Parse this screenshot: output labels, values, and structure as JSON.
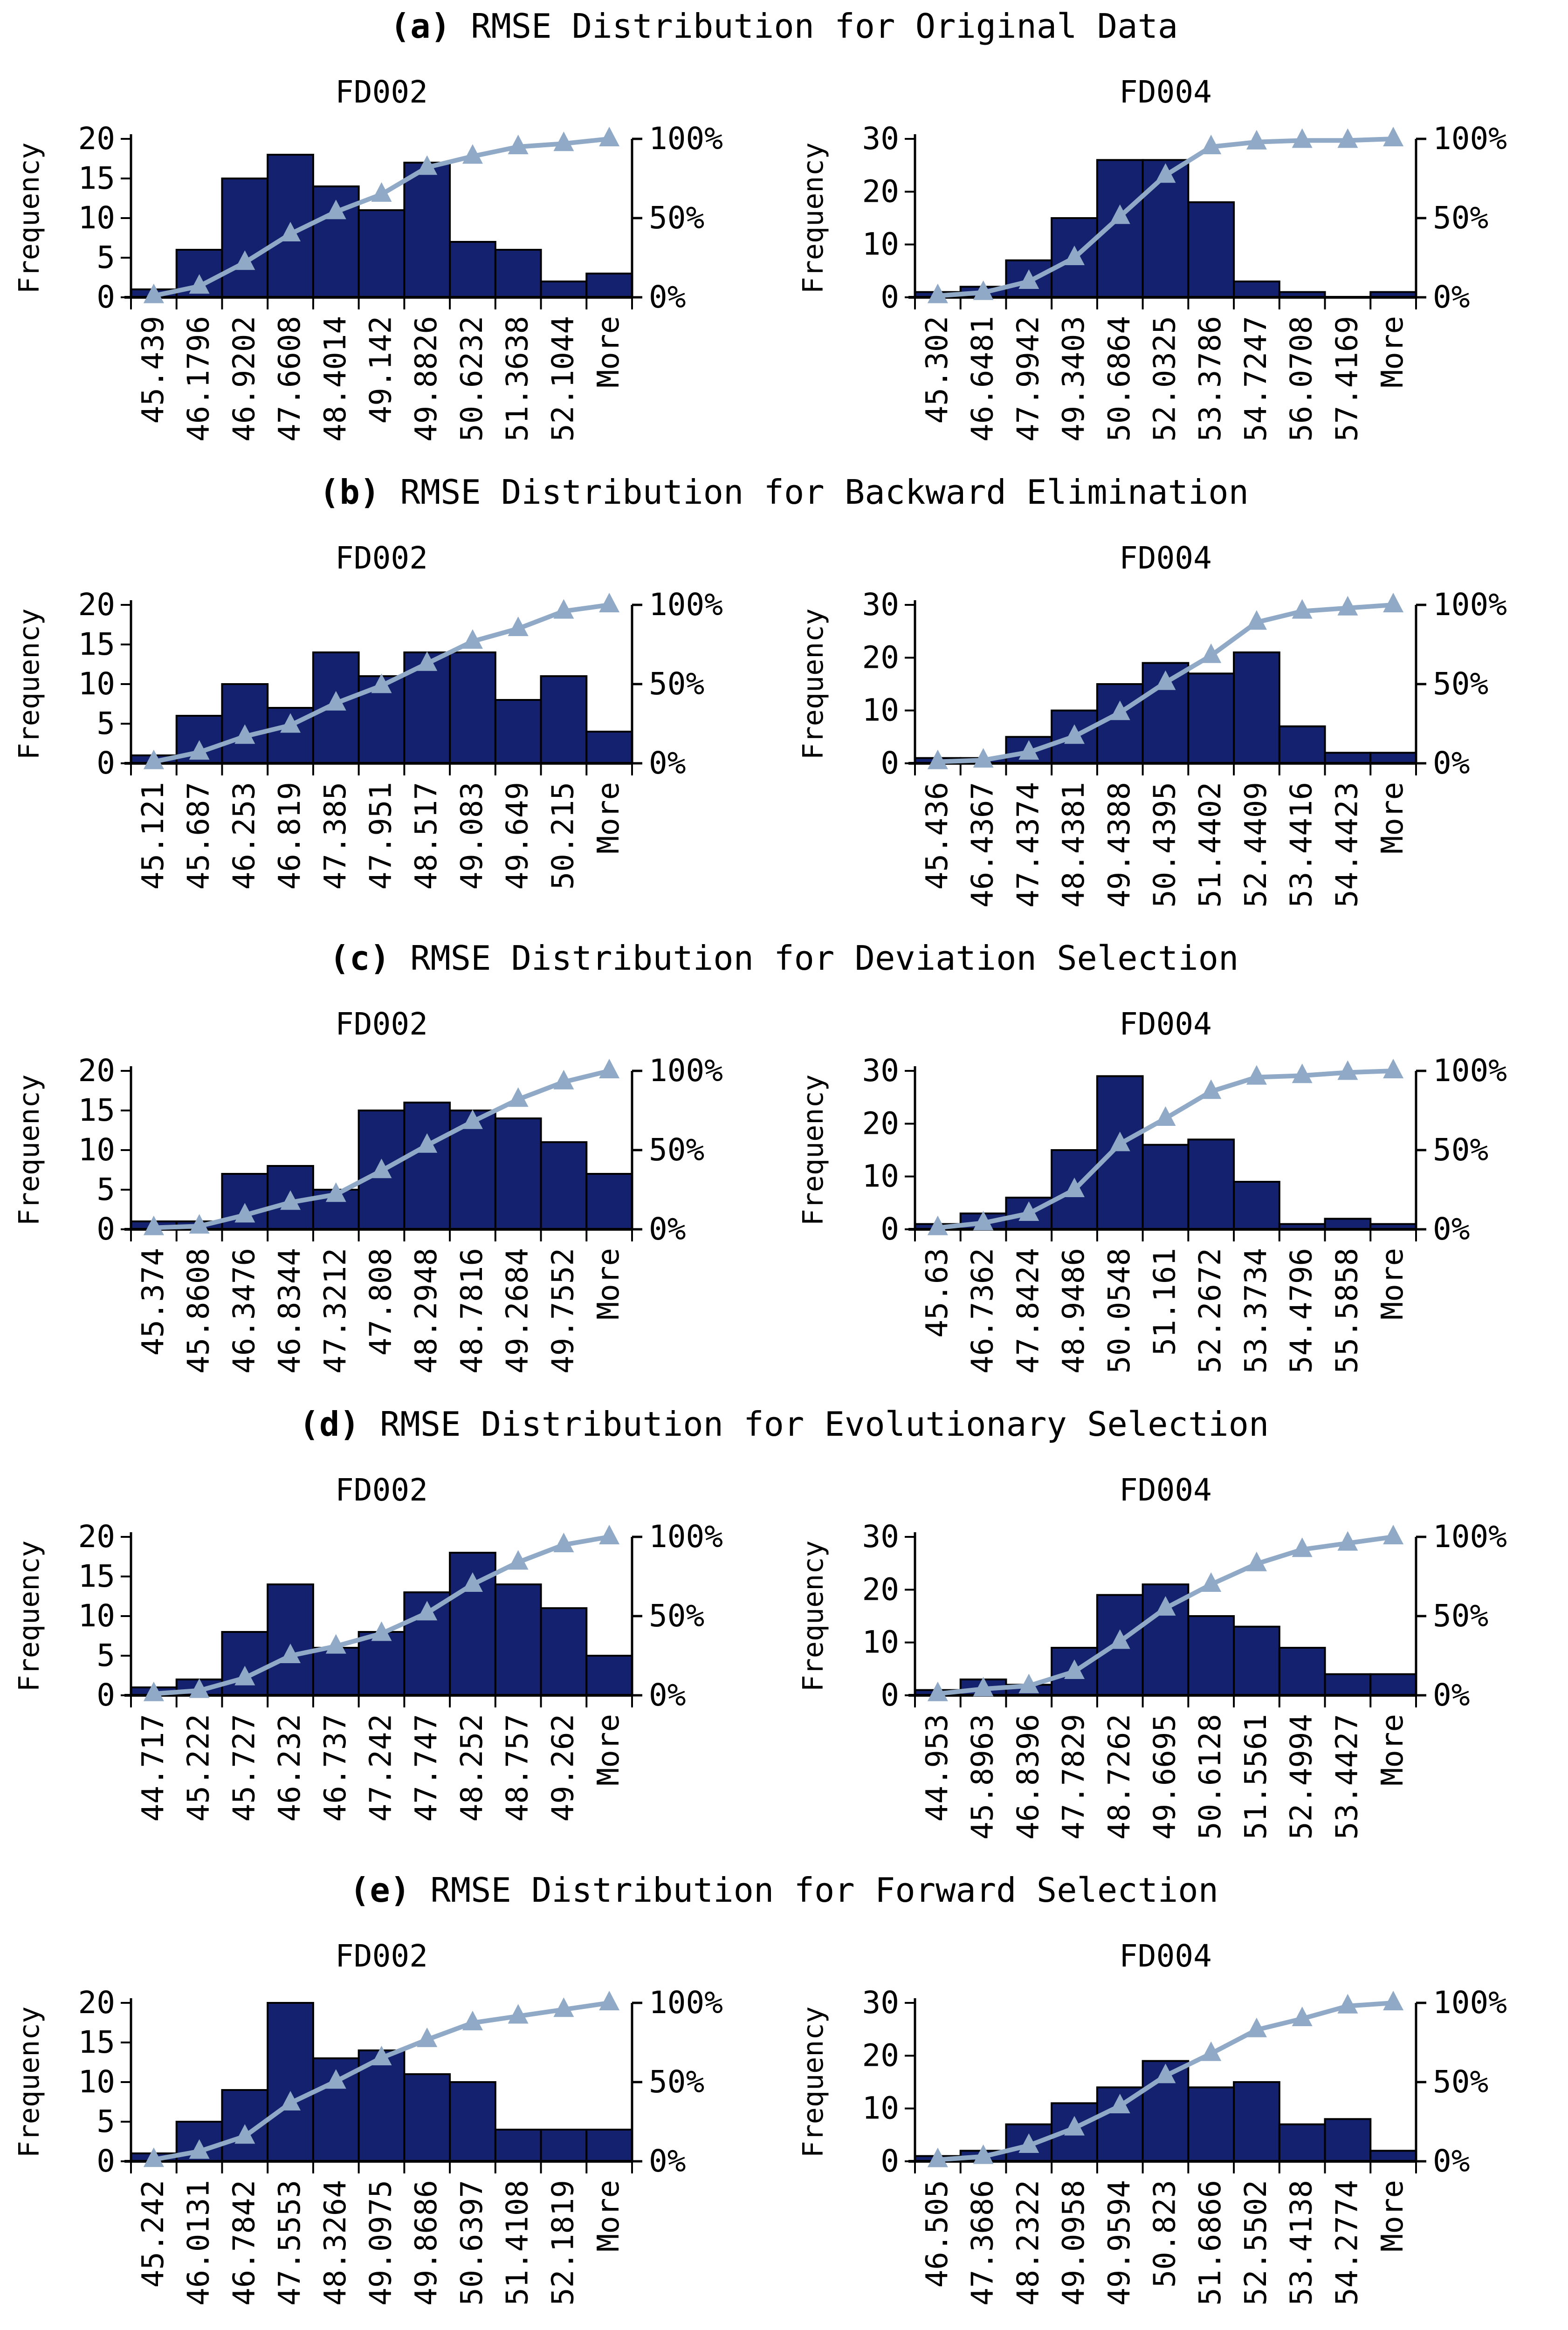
{
  "figure": {
    "rows": [
      {
        "caption_prefix": "(a)",
        "caption_text": " RMSE Distribution for Original Data"
      },
      {
        "caption_prefix": "(b)",
        "caption_text": " RMSE Distribution for Backward Elimination"
      },
      {
        "caption_prefix": "(c)",
        "caption_text": " RMSE Distribution for Deviation Selection"
      },
      {
        "caption_prefix": "(d)",
        "caption_text": " RMSE Distribution for Evolutionary Selection"
      },
      {
        "caption_prefix": "(e)",
        "caption_text": " RMSE Distribution for Forward Selection"
      }
    ]
  },
  "style": {
    "bar_fill": "#14216E",
    "bar_edge": "#000000",
    "line_color": "#8FA9C6",
    "axis_color": "#000000"
  },
  "chart_data": [
    {
      "type": "bar",
      "subtype": "pareto-histogram",
      "panel": "a",
      "title": "FD002",
      "ylabel": "Frequency",
      "ylim": [
        0,
        20
      ],
      "y_ticks": [
        0,
        5,
        10,
        15,
        20
      ],
      "right_axis_ticks": [
        "0%",
        "50%",
        "100%"
      ],
      "legend": "none",
      "grid": "off",
      "categories": [
        "45.439",
        "46.1796",
        "46.9202",
        "47.6608",
        "48.4014",
        "49.142",
        "49.8826",
        "50.6232",
        "51.3638",
        "52.1044",
        "More"
      ],
      "frequencies": [
        1,
        6,
        15,
        18,
        14,
        11,
        17,
        7,
        6,
        2,
        3
      ],
      "cumulative_percent": [
        1,
        7,
        22,
        40,
        54,
        65,
        82,
        89,
        95,
        97,
        100
      ]
    },
    {
      "type": "bar",
      "subtype": "pareto-histogram",
      "panel": "a",
      "title": "FD004",
      "ylabel": "Frequency",
      "ylim": [
        0,
        30
      ],
      "y_ticks": [
        0,
        10,
        20,
        30
      ],
      "right_axis_ticks": [
        "0%",
        "50%",
        "100%"
      ],
      "legend": "none",
      "grid": "off",
      "categories": [
        "45.302",
        "46.6481",
        "47.9942",
        "49.3403",
        "50.6864",
        "52.0325",
        "53.3786",
        "54.7247",
        "56.0708",
        "57.4169",
        "More"
      ],
      "frequencies": [
        1,
        2,
        7,
        15,
        26,
        26,
        18,
        3,
        1,
        0,
        1
      ],
      "cumulative_percent": [
        1,
        3,
        10,
        25,
        51,
        77,
        95,
        98,
        99,
        99,
        100
      ]
    },
    {
      "type": "bar",
      "subtype": "pareto-histogram",
      "panel": "b",
      "title": "FD002",
      "ylabel": "Frequency",
      "ylim": [
        0,
        20
      ],
      "y_ticks": [
        0,
        5,
        10,
        15,
        20
      ],
      "right_axis_ticks": [
        "0%",
        "50%",
        "100%"
      ],
      "legend": "none",
      "grid": "off",
      "categories": [
        "45.121",
        "45.687",
        "46.253",
        "46.819",
        "47.385",
        "47.951",
        "48.517",
        "49.083",
        "49.649",
        "50.215",
        "More"
      ],
      "frequencies": [
        1,
        6,
        10,
        7,
        14,
        11,
        14,
        14,
        8,
        11,
        4
      ],
      "cumulative_percent": [
        1,
        7,
        17,
        24,
        38,
        49,
        63,
        77,
        85,
        96,
        100
      ]
    },
    {
      "type": "bar",
      "subtype": "pareto-histogram",
      "panel": "b",
      "title": "FD004",
      "ylabel": "Frequency",
      "ylim": [
        0,
        30
      ],
      "y_ticks": [
        0,
        10,
        20,
        30
      ],
      "right_axis_ticks": [
        "0%",
        "50%",
        "100%"
      ],
      "legend": "none",
      "grid": "off",
      "categories": [
        "45.436",
        "46.4367",
        "47.4374",
        "48.4381",
        "49.4388",
        "50.4395",
        "51.4402",
        "52.4409",
        "53.4416",
        "54.4423",
        "More"
      ],
      "frequencies": [
        1,
        1,
        5,
        10,
        15,
        19,
        17,
        21,
        7,
        2,
        2
      ],
      "cumulative_percent": [
        1,
        2,
        7,
        17,
        32,
        51,
        68,
        89,
        96,
        98,
        100
      ]
    },
    {
      "type": "bar",
      "subtype": "pareto-histogram",
      "panel": "c",
      "title": "FD002",
      "ylabel": "Frequency",
      "ylim": [
        0,
        20
      ],
      "y_ticks": [
        0,
        5,
        10,
        15,
        20
      ],
      "right_axis_ticks": [
        "0%",
        "50%",
        "100%"
      ],
      "legend": "none",
      "grid": "off",
      "categories": [
        "45.374",
        "45.8608",
        "46.3476",
        "46.8344",
        "47.3212",
        "47.808",
        "48.2948",
        "48.7816",
        "49.2684",
        "49.7552",
        "More"
      ],
      "frequencies": [
        1,
        1,
        7,
        8,
        5,
        15,
        16,
        15,
        14,
        11,
        7
      ],
      "cumulative_percent": [
        1,
        2,
        9,
        17,
        22,
        37,
        53,
        68,
        82,
        93,
        100
      ]
    },
    {
      "type": "bar",
      "subtype": "pareto-histogram",
      "panel": "c",
      "title": "FD004",
      "ylabel": "Frequency",
      "ylim": [
        0,
        30
      ],
      "y_ticks": [
        0,
        10,
        20,
        30
      ],
      "right_axis_ticks": [
        "0%",
        "50%",
        "100%"
      ],
      "legend": "none",
      "grid": "off",
      "categories": [
        "45.63",
        "46.7362",
        "47.8424",
        "48.9486",
        "50.0548",
        "51.161",
        "52.2672",
        "53.3734",
        "54.4796",
        "55.5858",
        "More"
      ],
      "frequencies": [
        1,
        3,
        6,
        15,
        29,
        16,
        17,
        9,
        1,
        2,
        1
      ],
      "cumulative_percent": [
        1,
        4,
        10,
        25,
        54,
        70,
        87,
        96,
        97,
        99,
        100
      ]
    },
    {
      "type": "bar",
      "subtype": "pareto-histogram",
      "panel": "d",
      "title": "FD002",
      "ylabel": "Frequency",
      "ylim": [
        0,
        20
      ],
      "y_ticks": [
        0,
        5,
        10,
        15,
        20
      ],
      "right_axis_ticks": [
        "0%",
        "50%",
        "100%"
      ],
      "legend": "none",
      "grid": "off",
      "categories": [
        "44.717",
        "45.222",
        "45.727",
        "46.232",
        "46.737",
        "47.242",
        "47.747",
        "48.252",
        "48.757",
        "49.262",
        "More"
      ],
      "frequencies": [
        1,
        2,
        8,
        14,
        6,
        8,
        13,
        18,
        14,
        11,
        5
      ],
      "cumulative_percent": [
        1,
        3,
        11,
        25,
        31,
        39,
        52,
        70,
        84,
        95,
        100
      ]
    },
    {
      "type": "bar",
      "subtype": "pareto-histogram",
      "panel": "d",
      "title": "FD004",
      "ylabel": "Frequency",
      "ylim": [
        0,
        30
      ],
      "y_ticks": [
        0,
        10,
        20,
        30
      ],
      "right_axis_ticks": [
        "0%",
        "50%",
        "100%"
      ],
      "legend": "none",
      "grid": "off",
      "categories": [
        "44.953",
        "45.8963",
        "46.8396",
        "47.7829",
        "48.7262",
        "49.6695",
        "50.6128",
        "51.5561",
        "52.4994",
        "53.4427",
        "More"
      ],
      "frequencies": [
        1,
        3,
        2,
        9,
        19,
        21,
        15,
        13,
        9,
        4,
        4
      ],
      "cumulative_percent": [
        1,
        4,
        6,
        15,
        34,
        55,
        70,
        83,
        92,
        96,
        100
      ]
    },
    {
      "type": "bar",
      "subtype": "pareto-histogram",
      "panel": "e",
      "title": "FD002",
      "ylabel": "Frequency",
      "ylim": [
        0,
        20
      ],
      "y_ticks": [
        0,
        5,
        10,
        15,
        20
      ],
      "right_axis_ticks": [
        "0%",
        "50%",
        "100%"
      ],
      "legend": "none",
      "grid": "off",
      "categories": [
        "45.242",
        "46.0131",
        "46.7842",
        "47.5553",
        "48.3264",
        "49.0975",
        "49.8686",
        "50.6397",
        "51.4108",
        "52.1819",
        "More"
      ],
      "frequencies": [
        1,
        5,
        9,
        20,
        13,
        14,
        11,
        10,
        4,
        4,
        4
      ],
      "cumulative_percent": [
        1.1,
        6.3,
        15.8,
        36.8,
        50.5,
        65.3,
        76.8,
        87.4,
        91.6,
        95.8,
        100
      ]
    },
    {
      "type": "bar",
      "subtype": "pareto-histogram",
      "panel": "e",
      "title": "FD004",
      "ylabel": "Frequency",
      "ylim": [
        0,
        30
      ],
      "y_ticks": [
        0,
        10,
        20,
        30
      ],
      "right_axis_ticks": [
        "0%",
        "50%",
        "100%"
      ],
      "legend": "none",
      "grid": "off",
      "categories": [
        "46.505",
        "47.3686",
        "48.2322",
        "49.0958",
        "49.9594",
        "50.823",
        "51.6866",
        "52.5502",
        "53.4138",
        "54.2774",
        "More"
      ],
      "frequencies": [
        1,
        2,
        7,
        11,
        14,
        19,
        14,
        15,
        7,
        8,
        2
      ],
      "cumulative_percent": [
        1,
        3,
        10,
        21,
        35,
        54,
        68,
        83,
        90,
        98,
        100
      ]
    }
  ]
}
